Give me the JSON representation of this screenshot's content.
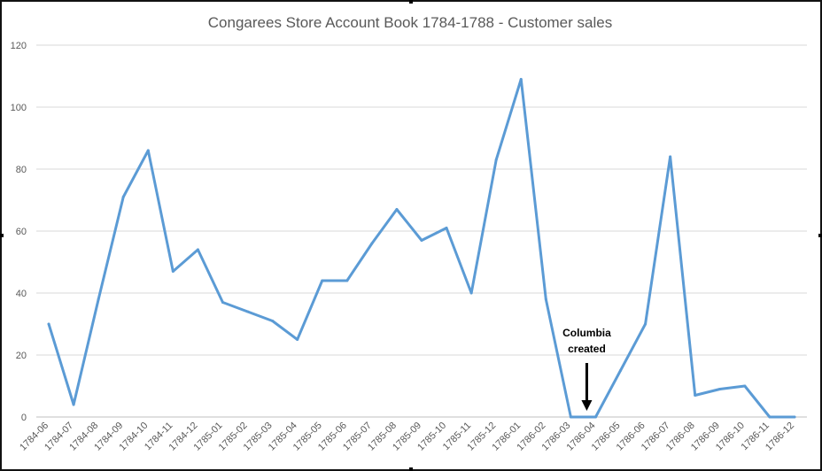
{
  "chart_data": {
    "type": "line",
    "title": "Congarees Store Account Book 1784-1788  -  Customer sales",
    "xlabel": "",
    "ylabel": "",
    "ylim": [
      0,
      120
    ],
    "yticks": [
      "0",
      "20",
      "40",
      "60",
      "80",
      "100",
      "120"
    ],
    "grid": true,
    "legend": "none",
    "categories": [
      "1784-06",
      "1784-07",
      "1784-08",
      "1784-09",
      "1784-10",
      "1784-11",
      "1784-12",
      "1785-01",
      "1785-02",
      "1785-03",
      "1785-04",
      "1785-05",
      "1785-06",
      "1785-07",
      "1785-08",
      "1785-09",
      "1785-10",
      "1785-11",
      "1785-12",
      "1786-01",
      "1786-02",
      "1786-03",
      "1786-04",
      "1786-05",
      "1786-06",
      "1786-07",
      "1786-08",
      "1786-09",
      "1786-10",
      "1786-11",
      "1786-12"
    ],
    "series": [
      {
        "color": "#5B9BD5",
        "values": [
          30,
          4,
          38,
          71,
          86,
          47,
          54,
          37,
          34,
          31,
          25,
          44,
          44,
          56,
          67,
          57,
          61,
          40,
          83,
          109,
          38,
          0,
          0,
          15,
          30,
          84,
          7,
          9,
          10,
          0,
          0
        ]
      }
    ],
    "annotations": [
      {
        "lines": [
          "Columbia",
          "created"
        ],
        "category": "1786-04",
        "arrow": "down"
      }
    ]
  }
}
